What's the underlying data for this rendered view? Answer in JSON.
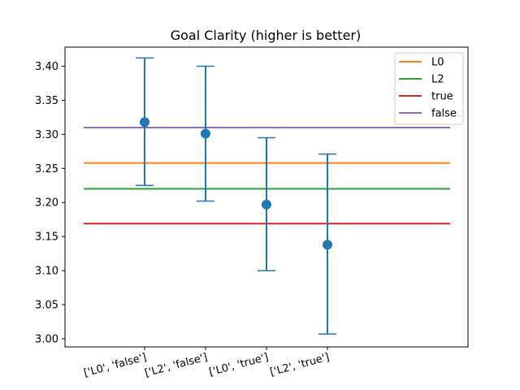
{
  "chart_data": {
    "type": "scatter",
    "title": "Goal Clarity (higher is better)",
    "xlabel": "",
    "ylabel": "",
    "categories": [
      "['L0', 'false']",
      "['L2', 'false']",
      "['L0', 'true']",
      "['L2', 'true']"
    ],
    "points": [
      {
        "mean": 3.318,
        "lower": 3.225,
        "upper": 3.412
      },
      {
        "mean": 3.301,
        "lower": 3.202,
        "upper": 3.4
      },
      {
        "mean": 3.197,
        "lower": 3.1,
        "upper": 3.295
      },
      {
        "mean": 3.138,
        "lower": 3.007,
        "upper": 3.271
      }
    ],
    "point_color": "#1f77b4",
    "reference_lines": [
      {
        "name": "L0",
        "value": 3.258,
        "color": "#ff7f0e"
      },
      {
        "name": "L2",
        "value": 3.22,
        "color": "#2ca02c"
      },
      {
        "name": "true",
        "value": 3.169,
        "color": "#d62728"
      },
      {
        "name": "false",
        "value": 3.31,
        "color": "#9467bd"
      }
    ],
    "ylim": [
      2.988,
      3.428
    ],
    "yticks": [
      {
        "value": 3.0,
        "label": "3.00"
      },
      {
        "value": 3.05,
        "label": "3.05"
      },
      {
        "value": 3.1,
        "label": "3.10"
      },
      {
        "value": 3.15,
        "label": "3.15"
      },
      {
        "value": 3.2,
        "label": "3.20"
      },
      {
        "value": 3.25,
        "label": "3.25"
      },
      {
        "value": 3.3,
        "label": "3.30"
      },
      {
        "value": 3.35,
        "label": "3.35"
      },
      {
        "value": 3.4,
        "label": "3.40"
      }
    ],
    "grid": false,
    "legend_position": "top-right"
  }
}
